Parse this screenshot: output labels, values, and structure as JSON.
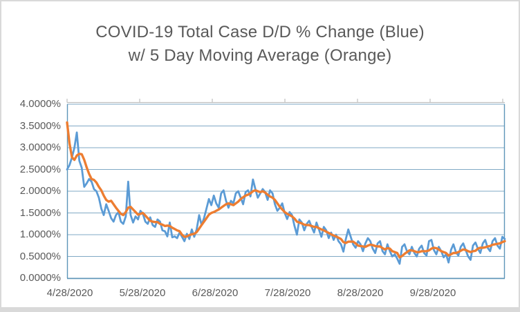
{
  "title": {
    "line1": "COVID-19 Total Case D/D % Change (Blue)",
    "line2": "w/ 5 Day Moving Average (Orange)",
    "color": "#595959"
  },
  "colors": {
    "frame_border": "#d9d9d9",
    "gridline": "#7fa8c4",
    "plot_border": "#5d95b8",
    "top_axis": "#bfbfbf",
    "text": "#595959",
    "series_blue": "#5B9BD5",
    "series_orange": "#ED7D31"
  },
  "chart_data": {
    "type": "line",
    "title": "COVID-19 Total Case D/D % Change (Blue) w/ 5 Day Moving Average (Orange)",
    "xlabel": "",
    "ylabel": "",
    "grid": true,
    "legend_position": "none",
    "x_axis": {
      "start_date": "4/28/2020",
      "interval": "daily",
      "tick_labels": [
        "4/28/2020",
        "5/28/2020",
        "6/28/2020",
        "7/28/2020",
        "8/28/2020",
        "9/28/2020"
      ]
    },
    "y_axis": {
      "min": 0,
      "max": 4,
      "unit": "percent",
      "tick_labels": [
        "0.0000%",
        "0.5000%",
        "1.0000%",
        "1.5000%",
        "2.0000%",
        "2.5000%",
        "3.0000%",
        "3.5000%",
        "4.0000%"
      ]
    },
    "series": [
      {
        "name": "Total Case D/D % Change",
        "color": "#5B9BD5",
        "values": [
          2.5,
          2.6,
          2.78,
          3.0,
          3.35,
          2.7,
          2.54,
          2.1,
          2.18,
          2.28,
          2.22,
          2.05,
          2.0,
          1.85,
          1.6,
          1.45,
          1.7,
          1.55,
          1.38,
          1.3,
          1.45,
          1.52,
          1.3,
          1.25,
          1.42,
          2.22,
          1.45,
          1.28,
          1.42,
          1.35,
          1.55,
          1.48,
          1.3,
          1.25,
          1.4,
          1.22,
          1.18,
          1.35,
          1.3,
          1.1,
          1.08,
          0.96,
          1.28,
          0.94,
          0.96,
          0.92,
          1.05,
          0.95,
          0.85,
          1.02,
          0.9,
          1.12,
          0.95,
          1.12,
          1.45,
          1.22,
          1.38,
          1.6,
          1.82,
          1.68,
          1.9,
          1.72,
          1.62,
          1.95,
          2.02,
          1.78,
          1.62,
          1.78,
          1.72,
          1.95,
          2.0,
          1.85,
          1.7,
          1.98,
          2.02,
          1.88,
          2.27,
          2.05,
          1.85,
          1.95,
          2.05,
          1.98,
          1.8,
          2.02,
          1.95,
          1.7,
          1.55,
          1.62,
          1.72,
          1.5,
          1.36,
          1.52,
          1.45,
          1.2,
          1.0,
          1.35,
          1.28,
          1.1,
          1.25,
          1.32,
          1.18,
          1.05,
          1.28,
          1.12,
          0.95,
          1.18,
          1.1,
          0.92,
          1.05,
          0.88,
          1.0,
          0.85,
          0.78,
          0.61,
          0.9,
          1.12,
          0.95,
          0.78,
          0.7,
          0.85,
          0.78,
          0.62,
          0.8,
          0.92,
          0.85,
          0.68,
          0.58,
          0.8,
          0.85,
          0.62,
          0.55,
          0.78,
          0.62,
          0.5,
          0.55,
          0.45,
          0.33,
          0.72,
          0.78,
          0.62,
          0.55,
          0.72,
          0.58,
          0.5,
          0.68,
          0.75,
          0.58,
          0.52,
          0.85,
          0.88,
          0.65,
          0.55,
          0.72,
          0.62,
          0.48,
          0.55,
          0.36,
          0.65,
          0.78,
          0.6,
          0.52,
          0.72,
          0.8,
          0.65,
          0.5,
          0.42,
          0.75,
          0.82,
          0.68,
          0.58,
          0.8,
          0.88,
          0.7,
          0.62,
          0.85,
          0.92,
          0.75,
          0.68,
          0.95,
          0.9
        ]
      },
      {
        "name": "5 Day Moving Average",
        "color": "#ED7D31",
        "values": [
          3.58,
          3.1,
          2.78,
          2.72,
          2.82,
          2.86,
          2.85,
          2.72,
          2.55,
          2.4,
          2.28,
          2.26,
          2.2,
          2.1,
          2.02,
          1.9,
          1.8,
          1.76,
          1.78,
          1.7,
          1.62,
          1.55,
          1.48,
          1.45,
          1.52,
          1.62,
          1.64,
          1.58,
          1.52,
          1.46,
          1.48,
          1.5,
          1.44,
          1.38,
          1.32,
          1.3,
          1.29,
          1.29,
          1.25,
          1.23,
          1.2,
          1.21,
          1.2,
          1.16,
          1.13,
          1.1,
          1.08,
          1.0,
          0.95,
          0.96,
          0.99,
          1.01,
          1.02,
          1.06,
          1.14,
          1.22,
          1.3,
          1.38,
          1.46,
          1.5,
          1.52,
          1.55,
          1.58,
          1.62,
          1.66,
          1.7,
          1.72,
          1.7,
          1.68,
          1.72,
          1.76,
          1.82,
          1.86,
          1.9,
          1.92,
          1.95,
          2.0,
          2.02,
          2.0,
          1.98,
          2.0,
          1.97,
          1.92,
          1.88,
          1.85,
          1.8,
          1.72,
          1.64,
          1.58,
          1.52,
          1.48,
          1.45,
          1.42,
          1.37,
          1.3,
          1.28,
          1.26,
          1.23,
          1.22,
          1.22,
          1.2,
          1.18,
          1.18,
          1.15,
          1.12,
          1.1,
          1.07,
          1.04,
          1.01,
          0.98,
          0.96,
          0.93,
          0.9,
          0.83,
          0.81,
          0.84,
          0.84,
          0.84,
          0.8,
          0.75,
          0.74,
          0.73,
          0.72,
          0.75,
          0.77,
          0.76,
          0.74,
          0.73,
          0.73,
          0.69,
          0.66,
          0.69,
          0.68,
          0.62,
          0.6,
          0.58,
          0.48,
          0.51,
          0.56,
          0.6,
          0.64,
          0.64,
          0.62,
          0.6,
          0.6,
          0.62,
          0.62,
          0.62,
          0.64,
          0.68,
          0.7,
          0.69,
          0.66,
          0.62,
          0.6,
          0.58,
          0.52,
          0.55,
          0.58,
          0.58,
          0.6,
          0.63,
          0.66,
          0.65,
          0.62,
          0.6,
          0.62,
          0.63,
          0.68,
          0.7,
          0.7,
          0.71,
          0.73,
          0.74,
          0.77,
          0.78,
          0.79,
          0.8,
          0.83,
          0.85
        ]
      }
    ]
  }
}
